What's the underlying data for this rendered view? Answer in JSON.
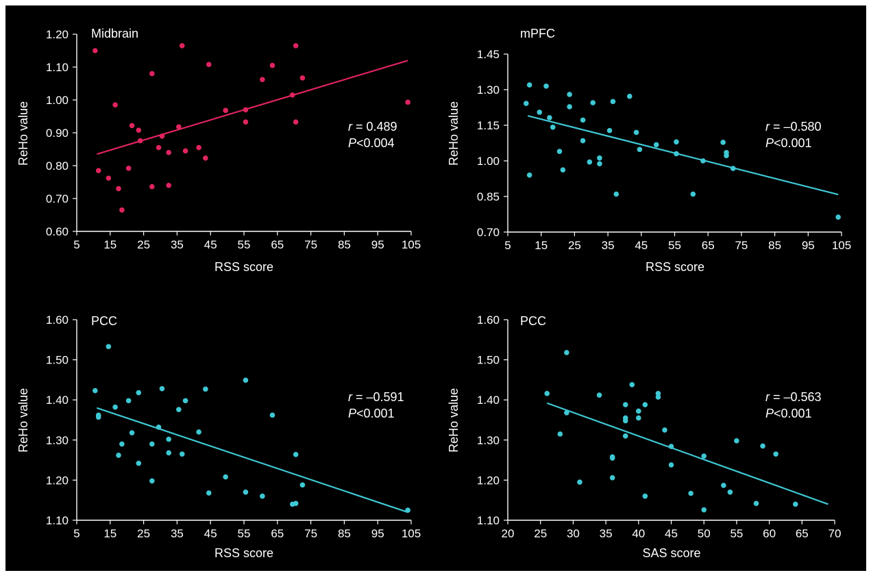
{
  "chart_data": [
    {
      "type": "scatter",
      "title": "Midbrain",
      "xlabel": "RSS score",
      "ylabel": "ReHo value",
      "xlim": [
        5,
        105
      ],
      "ylim": [
        0.6,
        1.2
      ],
      "x_ticks": [
        "5",
        "15",
        "25",
        "35",
        "45",
        "55",
        "65",
        "75",
        "85",
        "95",
        "105"
      ],
      "y_ticks": [
        "0.60",
        "0.70",
        "0.80",
        "0.90",
        "1.00",
        "1.10",
        "1.20"
      ],
      "stat_r_label": "r",
      "stat_r_value": " = 0.489",
      "stat_p_label": "P",
      "stat_p_value": "<0.004",
      "color": "#e0245e",
      "fit_line": {
        "x": [
          11,
          104
        ],
        "y": [
          0.835,
          1.12
        ]
      },
      "points": [
        {
          "x": 10.5,
          "y": 1.15
        },
        {
          "x": 11.5,
          "y": 0.785
        },
        {
          "x": 14.5,
          "y": 0.762
        },
        {
          "x": 16.5,
          "y": 0.985
        },
        {
          "x": 17.5,
          "y": 0.73
        },
        {
          "x": 18.5,
          "y": 0.665
        },
        {
          "x": 20.5,
          "y": 0.792
        },
        {
          "x": 21.5,
          "y": 0.922
        },
        {
          "x": 23.5,
          "y": 0.908
        },
        {
          "x": 24,
          "y": 0.876
        },
        {
          "x": 27.5,
          "y": 1.08
        },
        {
          "x": 27.5,
          "y": 0.736
        },
        {
          "x": 29.5,
          "y": 0.855
        },
        {
          "x": 30.5,
          "y": 0.89
        },
        {
          "x": 32.5,
          "y": 0.84
        },
        {
          "x": 32.5,
          "y": 0.74
        },
        {
          "x": 35.5,
          "y": 0.918
        },
        {
          "x": 36.5,
          "y": 1.165
        },
        {
          "x": 37.5,
          "y": 0.845
        },
        {
          "x": 41.5,
          "y": 0.855
        },
        {
          "x": 43.5,
          "y": 0.823
        },
        {
          "x": 44.5,
          "y": 1.108
        },
        {
          "x": 49.5,
          "y": 0.968
        },
        {
          "x": 55.5,
          "y": 0.97
        },
        {
          "x": 55.5,
          "y": 0.933
        },
        {
          "x": 60.5,
          "y": 1.062
        },
        {
          "x": 63.5,
          "y": 1.105
        },
        {
          "x": 69.5,
          "y": 1.015
        },
        {
          "x": 70.5,
          "y": 1.165
        },
        {
          "x": 70.5,
          "y": 0.933
        },
        {
          "x": 72.5,
          "y": 1.067
        },
        {
          "x": 104,
          "y": 0.993
        }
      ]
    },
    {
      "type": "scatter",
      "title": "mPFC",
      "xlabel": "RSS score",
      "ylabel": "ReHo value",
      "xlim": [
        5,
        105
      ],
      "ylim": [
        0.7,
        1.45
      ],
      "x_ticks": [
        "5",
        "15",
        "25",
        "35",
        "45",
        "55",
        "65",
        "75",
        "85",
        "95",
        "105"
      ],
      "y_ticks": [
        "0.70",
        "0.85",
        "1.00",
        "1.15",
        "1.30",
        "1.45"
      ],
      "stat_r_label": "r",
      "stat_r_value": " = –0.580",
      "stat_p_label": "P",
      "stat_p_value": "<0.001",
      "color": "#3ec8d4",
      "fit_line": {
        "x": [
          11,
          104
        ],
        "y": [
          1.19,
          0.858
        ]
      },
      "points": [
        {
          "x": 10.5,
          "y": 1.242
        },
        {
          "x": 11.5,
          "y": 1.32
        },
        {
          "x": 11.5,
          "y": 0.94
        },
        {
          "x": 14.5,
          "y": 1.205
        },
        {
          "x": 16.5,
          "y": 1.315
        },
        {
          "x": 17.5,
          "y": 1.182
        },
        {
          "x": 18.5,
          "y": 1.142
        },
        {
          "x": 20.5,
          "y": 1.04
        },
        {
          "x": 21.5,
          "y": 0.962
        },
        {
          "x": 23.5,
          "y": 1.28
        },
        {
          "x": 23.5,
          "y": 1.228
        },
        {
          "x": 27.5,
          "y": 1.172
        },
        {
          "x": 27.5,
          "y": 1.085
        },
        {
          "x": 29.5,
          "y": 0.995
        },
        {
          "x": 30.5,
          "y": 1.245
        },
        {
          "x": 32.5,
          "y": 1.012
        },
        {
          "x": 32.5,
          "y": 0.988
        },
        {
          "x": 35.5,
          "y": 1.128
        },
        {
          "x": 36.5,
          "y": 1.25
        },
        {
          "x": 37.5,
          "y": 0.86
        },
        {
          "x": 41.5,
          "y": 1.272
        },
        {
          "x": 43.5,
          "y": 1.12
        },
        {
          "x": 44.5,
          "y": 1.048
        },
        {
          "x": 49.5,
          "y": 1.068
        },
        {
          "x": 55.5,
          "y": 1.08
        },
        {
          "x": 55.5,
          "y": 1.03
        },
        {
          "x": 60.5,
          "y": 0.86
        },
        {
          "x": 63.5,
          "y": 1.0
        },
        {
          "x": 69.5,
          "y": 1.078
        },
        {
          "x": 70.5,
          "y": 1.035
        },
        {
          "x": 70.5,
          "y": 1.022
        },
        {
          "x": 72.5,
          "y": 0.968
        },
        {
          "x": 104,
          "y": 0.763
        }
      ]
    },
    {
      "type": "scatter",
      "title": "PCC",
      "xlabel": "RSS score",
      "ylabel": "ReHo value",
      "xlim": [
        5,
        105
      ],
      "ylim": [
        1.1,
        1.6
      ],
      "x_ticks": [
        "5",
        "15",
        "25",
        "35",
        "45",
        "55",
        "65",
        "75",
        "85",
        "95",
        "105"
      ],
      "y_ticks": [
        "1.10",
        "1.20",
        "1.30",
        "1.40",
        "1.50",
        "1.60"
      ],
      "stat_r_label": "r",
      "stat_r_value": " = –0.591",
      "stat_p_label": "P",
      "stat_p_value": "<0.001",
      "color": "#3ec8d4",
      "fit_line": {
        "x": [
          11,
          104
        ],
        "y": [
          1.38,
          1.12
        ]
      },
      "points": [
        {
          "x": 10.5,
          "y": 1.423
        },
        {
          "x": 11.5,
          "y": 1.362
        },
        {
          "x": 11.5,
          "y": 1.357
        },
        {
          "x": 14.5,
          "y": 1.533
        },
        {
          "x": 16.5,
          "y": 1.382
        },
        {
          "x": 17.5,
          "y": 1.262
        },
        {
          "x": 18.5,
          "y": 1.29
        },
        {
          "x": 20.5,
          "y": 1.398
        },
        {
          "x": 21.5,
          "y": 1.318
        },
        {
          "x": 23.5,
          "y": 1.242
        },
        {
          "x": 23.5,
          "y": 1.418
        },
        {
          "x": 27.5,
          "y": 1.29
        },
        {
          "x": 27.5,
          "y": 1.198
        },
        {
          "x": 29.5,
          "y": 1.332
        },
        {
          "x": 30.5,
          "y": 1.428
        },
        {
          "x": 32.5,
          "y": 1.302
        },
        {
          "x": 32.5,
          "y": 1.268
        },
        {
          "x": 35.5,
          "y": 1.376
        },
        {
          "x": 36.5,
          "y": 1.265
        },
        {
          "x": 37.5,
          "y": 1.398
        },
        {
          "x": 41.5,
          "y": 1.32
        },
        {
          "x": 43.5,
          "y": 1.427
        },
        {
          "x": 44.5,
          "y": 1.168
        },
        {
          "x": 49.5,
          "y": 1.208
        },
        {
          "x": 55.5,
          "y": 1.449
        },
        {
          "x": 55.5,
          "y": 1.17
        },
        {
          "x": 60.5,
          "y": 1.16
        },
        {
          "x": 63.5,
          "y": 1.362
        },
        {
          "x": 69.5,
          "y": 1.14
        },
        {
          "x": 70.5,
          "y": 1.264
        },
        {
          "x": 70.5,
          "y": 1.142
        },
        {
          "x": 72.5,
          "y": 1.188
        },
        {
          "x": 104,
          "y": 1.125
        }
      ]
    },
    {
      "type": "scatter",
      "title": "PCC",
      "xlabel": "SAS score",
      "ylabel": "ReHo value",
      "xlim": [
        20,
        70
      ],
      "ylim": [
        1.1,
        1.6
      ],
      "x_ticks": [
        "20",
        "25",
        "30",
        "35",
        "40",
        "45",
        "50",
        "55",
        "60",
        "65",
        "70"
      ],
      "y_ticks": [
        "1.10",
        "1.20",
        "1.30",
        "1.40",
        "1.50",
        "1.60"
      ],
      "stat_r_label": "r",
      "stat_r_value": " = –0.563",
      "stat_p_label": "P",
      "stat_p_value": "<0.001",
      "color": "#3ec8d4",
      "fit_line": {
        "x": [
          26,
          69
        ],
        "y": [
          1.392,
          1.14
        ]
      },
      "points": [
        {
          "x": 26,
          "y": 1.416
        },
        {
          "x": 28,
          "y": 1.315
        },
        {
          "x": 29,
          "y": 1.518
        },
        {
          "x": 29,
          "y": 1.368
        },
        {
          "x": 31,
          "y": 1.195
        },
        {
          "x": 34,
          "y": 1.412
        },
        {
          "x": 36,
          "y": 1.258
        },
        {
          "x": 36,
          "y": 1.255
        },
        {
          "x": 36,
          "y": 1.206
        },
        {
          "x": 38,
          "y": 1.388
        },
        {
          "x": 38,
          "y": 1.355
        },
        {
          "x": 38,
          "y": 1.348
        },
        {
          "x": 38,
          "y": 1.31
        },
        {
          "x": 39,
          "y": 1.438
        },
        {
          "x": 40,
          "y": 1.372
        },
        {
          "x": 40,
          "y": 1.355
        },
        {
          "x": 41,
          "y": 1.388
        },
        {
          "x": 41,
          "y": 1.16
        },
        {
          "x": 43,
          "y": 1.416
        },
        {
          "x": 43,
          "y": 1.407
        },
        {
          "x": 44,
          "y": 1.325
        },
        {
          "x": 45,
          "y": 1.284
        },
        {
          "x": 45,
          "y": 1.238
        },
        {
          "x": 48,
          "y": 1.167
        },
        {
          "x": 50,
          "y": 1.26
        },
        {
          "x": 50,
          "y": 1.126
        },
        {
          "x": 53,
          "y": 1.187
        },
        {
          "x": 54,
          "y": 1.17
        },
        {
          "x": 55,
          "y": 1.298
        },
        {
          "x": 58,
          "y": 1.142
        },
        {
          "x": 59,
          "y": 1.285
        },
        {
          "x": 61,
          "y": 1.265
        },
        {
          "x": 64,
          "y": 1.14
        }
      ]
    }
  ]
}
